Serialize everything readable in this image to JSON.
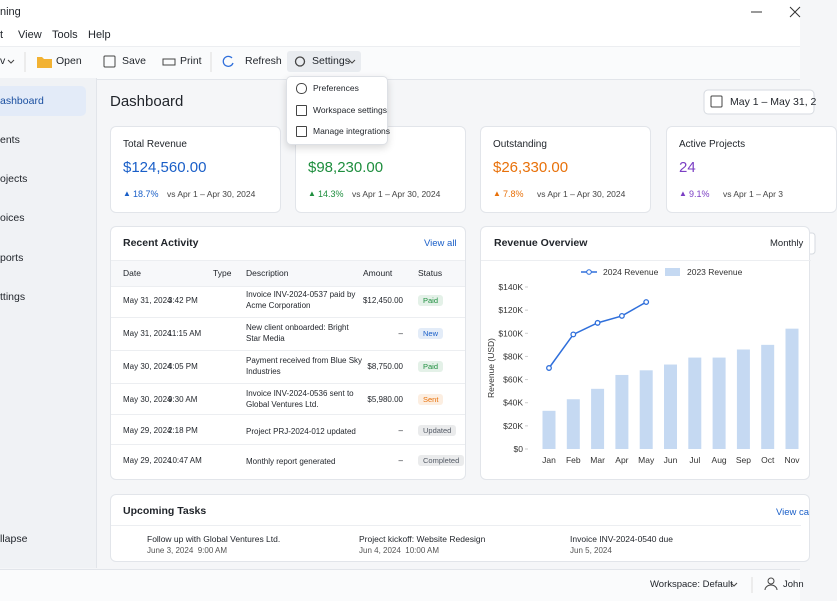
{
  "window": {
    "title": "ning"
  },
  "menu": [
    "t",
    "View",
    "Tools",
    "Help"
  ],
  "toolbar": [
    "v",
    "Open",
    "Save",
    "Print",
    "Refresh",
    "Settings"
  ],
  "settings_menu": [
    "Preferences",
    "Workspace settings",
    "Manage integrations"
  ],
  "sidebar": [
    "ashboard",
    "ents",
    "ojects",
    "oices",
    "ports",
    "ttings"
  ],
  "sidebar_footer": "llapse",
  "header": {
    "title": "Dashboard",
    "date_range": "May 1 – May 31, 2"
  },
  "cards": [
    {
      "title": "Total Revenue",
      "value": "$124,560.00",
      "change": "18.7%",
      "compare": "vs Apr 1 – Apr 30, 2024",
      "color": "#1a5fc8"
    },
    {
      "value": "$98,230.00",
      "change": "14.3%",
      "compare": "vs Apr 1 – Apr 30, 2024",
      "color": "#1e8e3e"
    },
    {
      "title": "Outstanding",
      "value": "$26,330.00",
      "change": "7.8%",
      "compare": "vs Apr 1 – Apr 30, 2024",
      "color": "#e8710a"
    },
    {
      "title": "Active Projects",
      "value": "24",
      "change": "9.1%",
      "compare": "vs Apr 1 – Apr 3",
      "color": "#7b3fc4"
    }
  ],
  "activity": {
    "title": "Recent Activity",
    "link": "View all",
    "columns": [
      "Date",
      "Type",
      "Description",
      "Amount",
      "Status"
    ],
    "rows": [
      {
        "date": "May 31, 2024",
        "time": "3:42 PM",
        "description": "Invoice INV-2024-0537 paid by Acme Corporation",
        "amount": "$12,450.00",
        "status": "Paid",
        "status_color": "#1e8e3e"
      },
      {
        "date": "May 31, 2024",
        "time": "11:15 AM",
        "description": "New client onboarded: Bright Star Media",
        "amount": "–",
        "status": "New",
        "status_color": "#1a5fc8"
      },
      {
        "date": "May 30, 2024",
        "time": "4:05 PM",
        "description": "Payment received from Blue Sky Industries",
        "amount": "$8,750.00",
        "status": "Paid",
        "status_color": "#1e8e3e"
      },
      {
        "date": "May 30, 2024",
        "time": "9:30 AM",
        "description": "Invoice INV-2024-0536 sent to Global Ventures Ltd.",
        "amount": "$5,980.00",
        "status": "Sent",
        "status_color": "#e8710a"
      },
      {
        "date": "May 29, 2024",
        "time": "2:18 PM",
        "description": "Project PRJ-2024-012 updated",
        "amount": "–",
        "status": "Updated",
        "status_color": "#555b66"
      },
      {
        "date": "May 29, 2024",
        "time": "10:47 AM",
        "description": "Monthly report generated",
        "amount": "–",
        "status": "Completed",
        "status_color": "#555b66"
      }
    ]
  },
  "revenue_panel": {
    "period": "Monthly"
  },
  "chart_data": {
    "type": "combo",
    "title": "Revenue Overview",
    "ylabel": "Revenue (USD)",
    "categories": [
      "Jan",
      "Feb",
      "Mar",
      "Apr",
      "May",
      "Jun",
      "Jul",
      "Aug",
      "Sep",
      "Oct",
      "Nov"
    ],
    "series": [
      {
        "name": "2024 Revenue",
        "type": "line",
        "color": "#2f6fdb",
        "values": [
          70000,
          99000,
          109000,
          115000,
          127000,
          null,
          null,
          null,
          null,
          null,
          null
        ]
      },
      {
        "name": "2023 Revenue",
        "type": "bar",
        "color": "#c5d9f2",
        "values": [
          33000,
          43000,
          52000,
          64000,
          68000,
          73000,
          79000,
          79000,
          86000,
          90000,
          104000
        ]
      }
    ],
    "ylim": [
      0,
      140000
    ],
    "yticks": [
      {
        "value": 0,
        "label": "$0"
      },
      {
        "value": 20000,
        "label": "$20K"
      },
      {
        "value": 40000,
        "label": "$40K"
      },
      {
        "value": 60000,
        "label": "$60K"
      },
      {
        "value": 80000,
        "label": "$80K"
      },
      {
        "value": 100000,
        "label": "$100K"
      },
      {
        "value": 120000,
        "label": "$120K"
      },
      {
        "value": 140000,
        "label": "$140K"
      }
    ]
  },
  "tasks": {
    "title": "Upcoming Tasks",
    "link": "View ca",
    "items": [
      {
        "title": "Follow up with Global Ventures Ltd.",
        "due": "June 3, 2024  9:00 AM"
      },
      {
        "title": "Project kickoff: Website Redesign",
        "due": "Jun 4, 2024  10:00 AM"
      },
      {
        "title": "Invoice INV-2024-0540 due",
        "due": "Jun 5, 2024"
      }
    ]
  },
  "status_bar": {
    "workspace": "Workspace: Default",
    "user": "John"
  }
}
